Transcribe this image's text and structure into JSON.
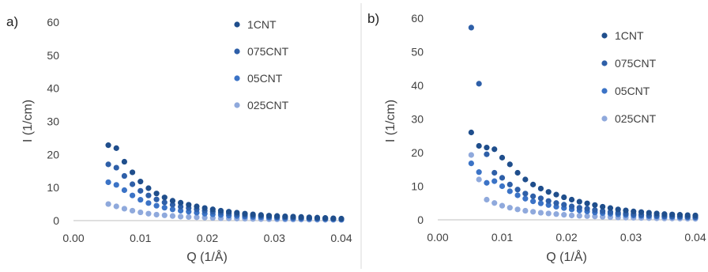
{
  "colors": {
    "1CNT": "#1f4e8c",
    "075CNT": "#2e5fa8",
    "05CNT": "#3b73c6",
    "025CNT": "#8fa9dc",
    "axis": "#bfbfbf",
    "divider": "#d9d9d9"
  },
  "chart_data": [
    {
      "type": "scatter",
      "panel_label": "a)",
      "xlabel": "Q (1/Å)",
      "ylabel": "I (1/cm)",
      "xlim": [
        0,
        0.04
      ],
      "ylim": [
        0,
        60
      ],
      "x_ticks": [
        "0.00",
        "0.01",
        "0.02",
        "0.03",
        "0.04"
      ],
      "y_ticks": [
        "0",
        "10",
        "20",
        "30",
        "40",
        "50",
        "60"
      ],
      "grid": false,
      "legend_position": "top-right",
      "x": [
        0.0052,
        0.0064,
        0.0076,
        0.0088,
        0.01,
        0.0112,
        0.0124,
        0.0136,
        0.0148,
        0.016,
        0.0172,
        0.0184,
        0.0196,
        0.0208,
        0.022,
        0.0232,
        0.0244,
        0.0256,
        0.0268,
        0.028,
        0.0292,
        0.0304,
        0.0316,
        0.0328,
        0.034,
        0.0352,
        0.0364,
        0.0376,
        0.0388,
        0.04
      ],
      "series": [
        {
          "name": "1CNT",
          "values": [
            22.8,
            21.9,
            17.8,
            14.6,
            11.8,
            9.8,
            8.2,
            7.0,
            6.0,
            5.4,
            4.8,
            4.3,
            3.8,
            3.4,
            3.0,
            2.7,
            2.4,
            2.1,
            1.9,
            1.7,
            1.5,
            1.4,
            1.3,
            1.2,
            1.1,
            1.0,
            0.9,
            0.8,
            0.7,
            0.6
          ]
        },
        {
          "name": "075CNT",
          "values": [
            17.0,
            16.0,
            13.5,
            11.0,
            9.0,
            7.6,
            6.4,
            5.5,
            4.8,
            4.2,
            3.8,
            3.4,
            3.0,
            2.7,
            2.4,
            2.2,
            1.9,
            1.7,
            1.5,
            1.4,
            1.2,
            1.1,
            1.0,
            0.9,
            0.8,
            0.7,
            0.65,
            0.6,
            0.55,
            0.5
          ]
        },
        {
          "name": "05CNT",
          "values": [
            11.6,
            10.8,
            9.2,
            7.6,
            6.3,
            5.3,
            4.5,
            3.9,
            3.4,
            3.0,
            2.7,
            2.4,
            2.1,
            1.9,
            1.7,
            1.5,
            1.4,
            1.2,
            1.1,
            1.0,
            0.9,
            0.8,
            0.7,
            0.65,
            0.6,
            0.55,
            0.5,
            0.45,
            0.4,
            0.35
          ]
        },
        {
          "name": "025CNT",
          "values": [
            5.0,
            4.3,
            3.6,
            3.0,
            2.5,
            2.1,
            1.8,
            1.6,
            1.4,
            1.2,
            1.1,
            1.0,
            0.9,
            0.8,
            0.7,
            0.65,
            0.6,
            0.55,
            0.5,
            0.45,
            0.4,
            0.38,
            0.35,
            0.32,
            0.3,
            0.28,
            0.26,
            0.24,
            0.22,
            0.2
          ]
        }
      ]
    },
    {
      "type": "scatter",
      "panel_label": "b)",
      "xlabel": "Q (1/Å)",
      "ylabel": "I (1/cm)",
      "xlim": [
        0,
        0.04
      ],
      "ylim": [
        0,
        60
      ],
      "x_ticks": [
        "0.00",
        "0.01",
        "0.02",
        "0.03",
        "0.04"
      ],
      "y_ticks": [
        "0",
        "10",
        "20",
        "30",
        "40",
        "50",
        "60"
      ],
      "grid": false,
      "legend_position": "top-right",
      "x": [
        0.0052,
        0.0064,
        0.0076,
        0.0088,
        0.01,
        0.0112,
        0.0124,
        0.0136,
        0.0148,
        0.016,
        0.0172,
        0.0184,
        0.0196,
        0.0208,
        0.022,
        0.0232,
        0.0244,
        0.0256,
        0.0268,
        0.028,
        0.0292,
        0.0304,
        0.0316,
        0.0328,
        0.034,
        0.0352,
        0.0364,
        0.0376,
        0.0388,
        0.04
      ],
      "series": [
        {
          "name": "1CNT",
          "values": [
            26.0,
            22.0,
            21.5,
            21.0,
            18.5,
            16.5,
            14.0,
            12.0,
            10.5,
            9.3,
            8.3,
            7.5,
            6.7,
            6.0,
            5.4,
            4.9,
            4.4,
            3.9,
            3.5,
            3.1,
            2.8,
            2.5,
            2.3,
            2.1,
            1.9,
            1.7,
            1.6,
            1.5,
            1.4,
            1.3
          ]
        },
        {
          "name": "075CNT",
          "values": [
            57.2,
            40.5,
            19.5,
            14.0,
            12.5,
            10.5,
            9.0,
            7.8,
            7.0,
            6.4,
            5.6,
            5.0,
            4.5,
            4.0,
            3.6,
            3.3,
            2.9,
            2.6,
            2.3,
            2.1,
            1.9,
            1.7,
            1.5,
            1.4,
            1.3,
            1.2,
            1.1,
            1.0,
            0.9,
            0.85
          ]
        },
        {
          "name": "05CNT",
          "values": [
            16.8,
            14.2,
            11.0,
            11.5,
            10.0,
            8.5,
            7.3,
            6.3,
            5.5,
            4.9,
            4.4,
            3.9,
            3.5,
            3.1,
            2.8,
            2.5,
            2.2,
            2.0,
            1.8,
            1.6,
            1.45,
            1.3,
            1.2,
            1.1,
            1.0,
            0.9,
            0.85,
            0.8,
            0.75,
            0.7
          ]
        },
        {
          "name": "025CNT",
          "values": [
            19.3,
            12.0,
            6.0,
            5.0,
            4.2,
            3.6,
            3.1,
            2.7,
            2.4,
            2.1,
            1.9,
            1.7,
            1.5,
            1.3,
            1.2,
            1.1,
            1.0,
            0.9,
            0.8,
            0.7,
            0.65,
            0.6,
            0.55,
            0.5,
            0.45,
            0.4,
            0.38,
            0.35,
            0.32,
            0.3
          ]
        }
      ]
    }
  ]
}
